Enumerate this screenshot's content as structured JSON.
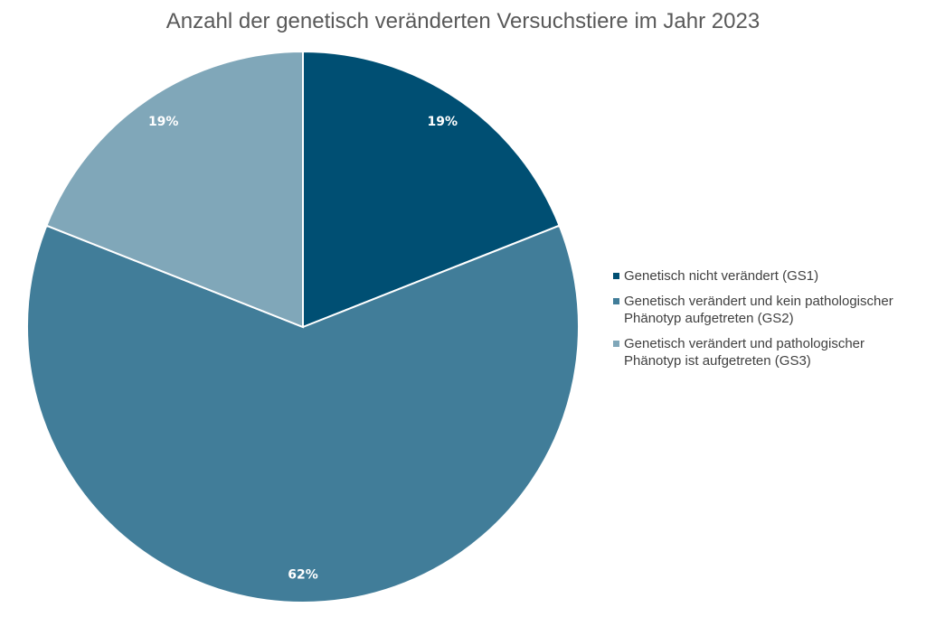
{
  "chart_data": {
    "type": "pie",
    "title": "Anzahl der genetisch veränderten Versuchstiere im Jahr 2023",
    "legend_position": "right",
    "slices": [
      {
        "name": "Genetisch nicht verändert (GS1)",
        "value": 19,
        "label": "19%",
        "color": "#004f73"
      },
      {
        "name": "Genetisch verändert und kein pathologischer Phänotyp aufgetreten (GS2)",
        "value": 62,
        "label": "62%",
        "color": "#417d99"
      },
      {
        "name": "Genetisch verändert und pathologischer Phänotyp ist aufgetreten (GS3)",
        "value": 19,
        "label": "19%",
        "color": "#80a7b9"
      }
    ]
  }
}
